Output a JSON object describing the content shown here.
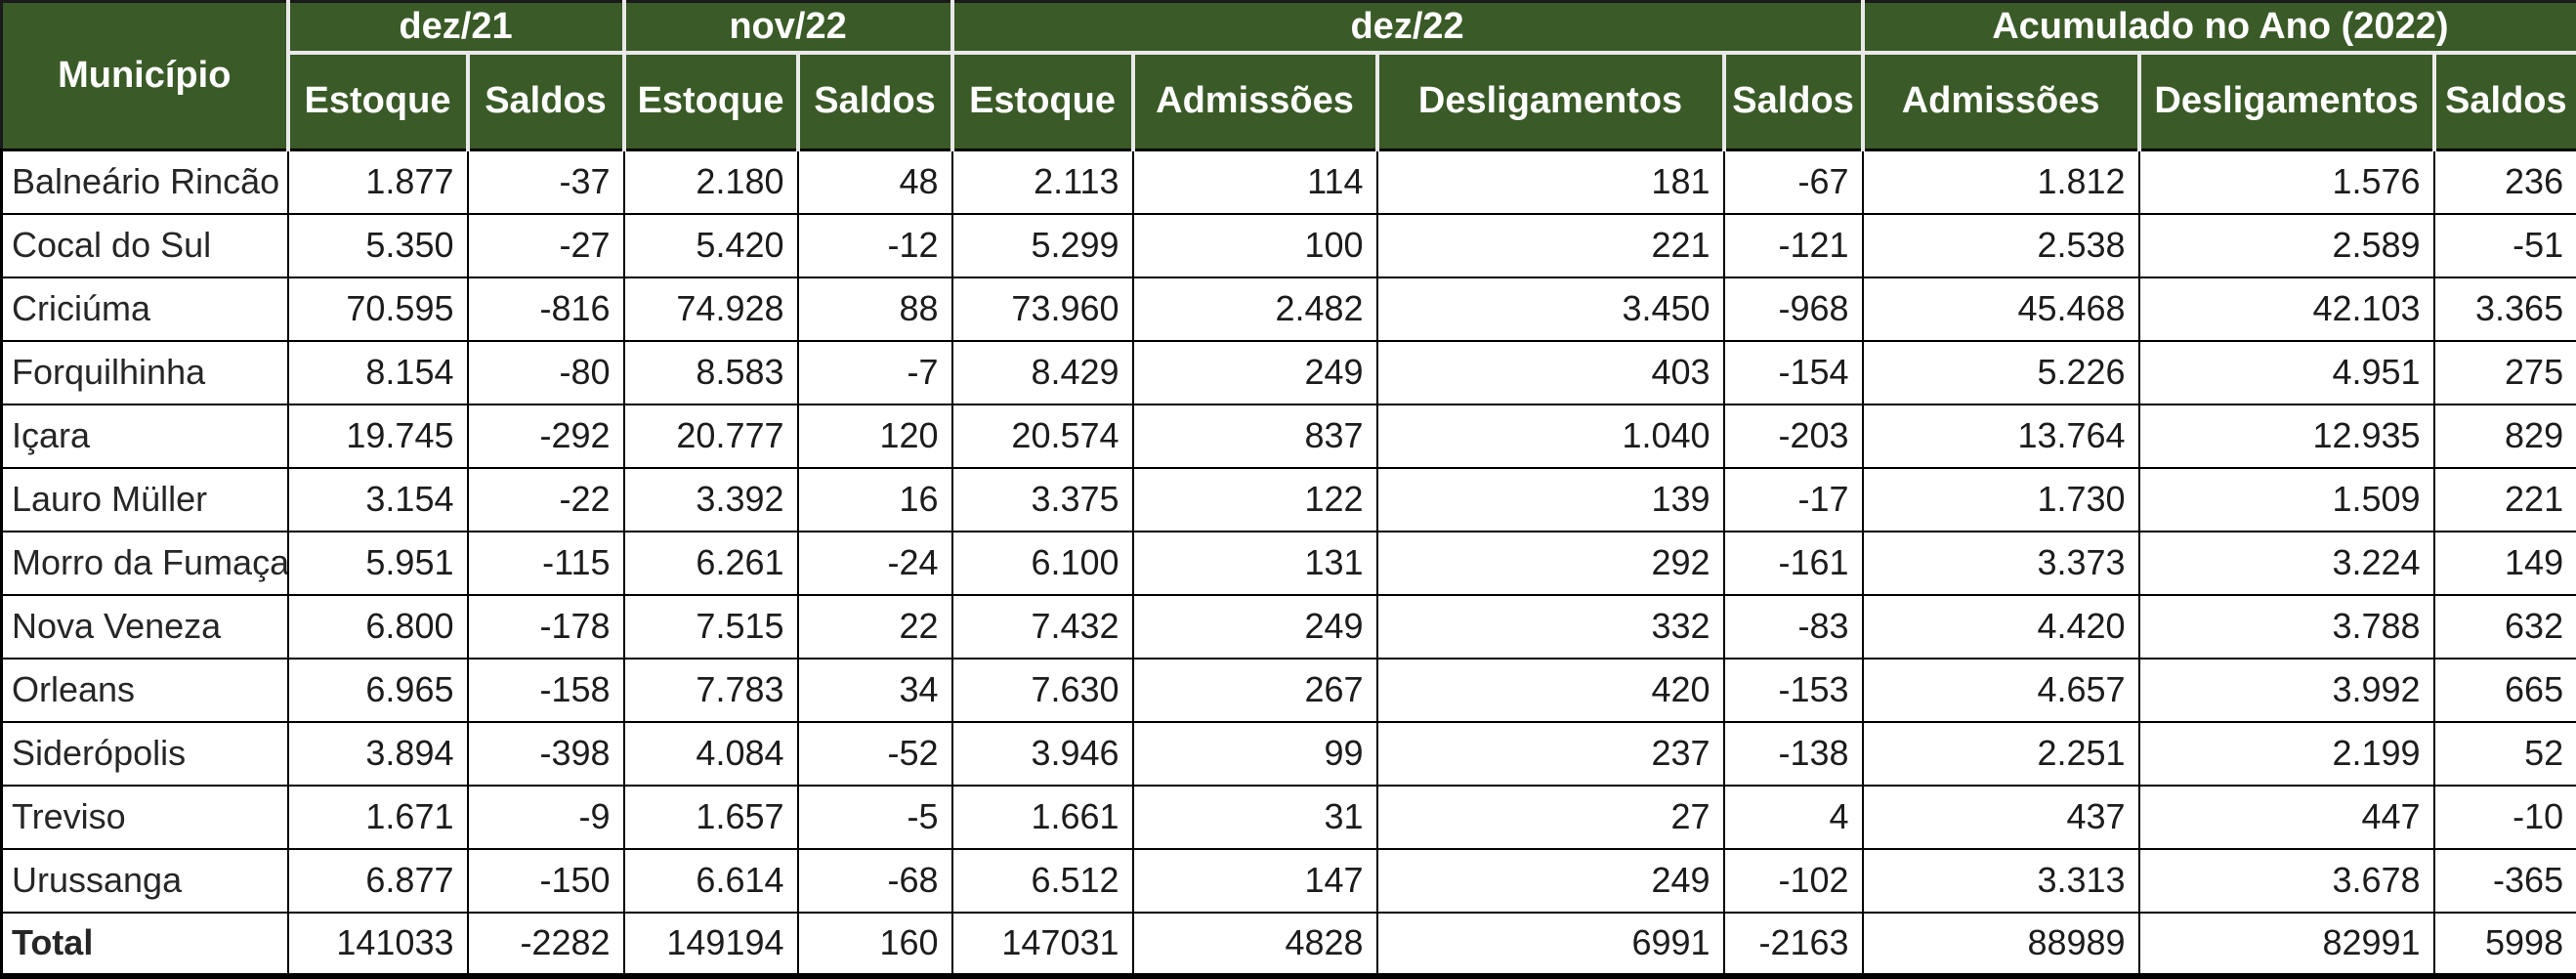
{
  "table": {
    "corner_label": "Município",
    "groups": [
      {
        "label": "dez/21",
        "cols": 2
      },
      {
        "label": "nov/22",
        "cols": 2
      },
      {
        "label": "dez/22",
        "cols": 4
      },
      {
        "label": "Acumulado no Ano (2022)",
        "cols": 3
      }
    ],
    "subheaders": [
      "Estoque",
      "Saldos",
      "Estoque",
      "Saldos",
      "Estoque",
      "Admissões",
      "Desligamentos",
      "Saldos",
      "Admissões",
      "Desligamentos",
      "Saldos"
    ],
    "rows": [
      {
        "municipio": "Balneário Rincão",
        "values": [
          "1.877",
          "-37",
          "2.180",
          "48",
          "2.113",
          "114",
          "181",
          "-67",
          "1.812",
          "1.576",
          "236"
        ]
      },
      {
        "municipio": "Cocal do Sul",
        "values": [
          "5.350",
          "-27",
          "5.420",
          "-12",
          "5.299",
          "100",
          "221",
          "-121",
          "2.538",
          "2.589",
          "-51"
        ]
      },
      {
        "municipio": "Criciúma",
        "values": [
          "70.595",
          "-816",
          "74.928",
          "88",
          "73.960",
          "2.482",
          "3.450",
          "-968",
          "45.468",
          "42.103",
          "3.365"
        ]
      },
      {
        "municipio": "Forquilhinha",
        "values": [
          "8.154",
          "-80",
          "8.583",
          "-7",
          "8.429",
          "249",
          "403",
          "-154",
          "5.226",
          "4.951",
          "275"
        ]
      },
      {
        "municipio": "Içara",
        "values": [
          "19.745",
          "-292",
          "20.777",
          "120",
          "20.574",
          "837",
          "1.040",
          "-203",
          "13.764",
          "12.935",
          "829"
        ]
      },
      {
        "municipio": "Lauro Müller",
        "values": [
          "3.154",
          "-22",
          "3.392",
          "16",
          "3.375",
          "122",
          "139",
          "-17",
          "1.730",
          "1.509",
          "221"
        ]
      },
      {
        "municipio": "Morro da Fumaça",
        "values": [
          "5.951",
          "-115",
          "6.261",
          "-24",
          "6.100",
          "131",
          "292",
          "-161",
          "3.373",
          "3.224",
          "149"
        ]
      },
      {
        "municipio": "Nova Veneza",
        "values": [
          "6.800",
          "-178",
          "7.515",
          "22",
          "7.432",
          "249",
          "332",
          "-83",
          "4.420",
          "3.788",
          "632"
        ]
      },
      {
        "municipio": "Orleans",
        "values": [
          "6.965",
          "-158",
          "7.783",
          "34",
          "7.630",
          "267",
          "420",
          "-153",
          "4.657",
          "3.992",
          "665"
        ]
      },
      {
        "municipio": "Siderópolis",
        "values": [
          "3.894",
          "-398",
          "4.084",
          "-52",
          "3.946",
          "99",
          "237",
          "-138",
          "2.251",
          "2.199",
          "52"
        ]
      },
      {
        "municipio": "Treviso",
        "values": [
          "1.671",
          "-9",
          "1.657",
          "-5",
          "1.661",
          "31",
          "27",
          "4",
          "437",
          "447",
          "-10"
        ]
      },
      {
        "municipio": "Urussanga",
        "values": [
          "6.877",
          "-150",
          "6.614",
          "-68",
          "6.512",
          "147",
          "249",
          "-102",
          "3.313",
          "3.678",
          "-365"
        ]
      }
    ],
    "total": {
      "label": "Total",
      "values": [
        "141033",
        "-2282",
        "149194",
        "160",
        "147031",
        "4828",
        "6991",
        "-2163",
        "88989",
        "82991",
        "5998"
      ]
    }
  },
  "colors": {
    "header_bg": "#3A5A27",
    "header_text": "#FFFFFF",
    "header_divider": "#E9E9E9",
    "body_text": "#1C1C1C",
    "grid_line": "#000000"
  }
}
